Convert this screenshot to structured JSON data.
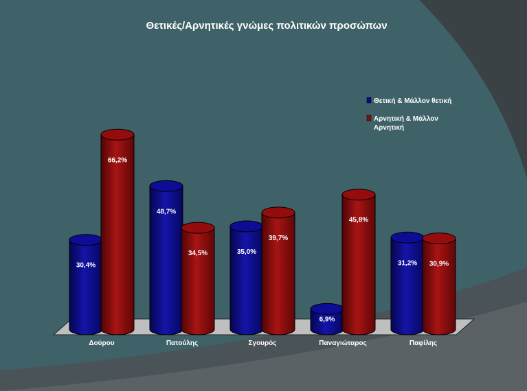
{
  "colors": {
    "background": "#3f6269",
    "series_positive": "#0a0a8a",
    "series_negative": "#8a0a0a",
    "floor": "#bfbfbf",
    "text": "#ffffff"
  },
  "chart_data": {
    "type": "bar",
    "style": "3d-cylinder",
    "title": "Θετικές/Αρνητικές γνώμες πολιτικών προσώπων",
    "categories": [
      "Δούρου",
      "Πατούλης",
      "Σγουρός",
      "Παναγιώταρος",
      "Παφίλης"
    ],
    "series": [
      {
        "name": "Θετική & Μάλλον θετική",
        "color": "#0a0a8a",
        "values": [
          30.4,
          48.7,
          35.0,
          6.9,
          31.2
        ],
        "labels": [
          "30,4%",
          "48,7%",
          "35,0%",
          "6,9%",
          "31,2%"
        ]
      },
      {
        "name": "Αρνητική & Μάλλον Αρνητική",
        "color": "#8a0a0a",
        "values": [
          66.2,
          34.5,
          39.7,
          45.8,
          30.9
        ],
        "labels": [
          "66,2%",
          "34,5%",
          "39,7%",
          "45,8%",
          "30,9%"
        ]
      }
    ],
    "ylim": [
      0,
      70
    ],
    "grid": false,
    "legend_position": "right"
  }
}
